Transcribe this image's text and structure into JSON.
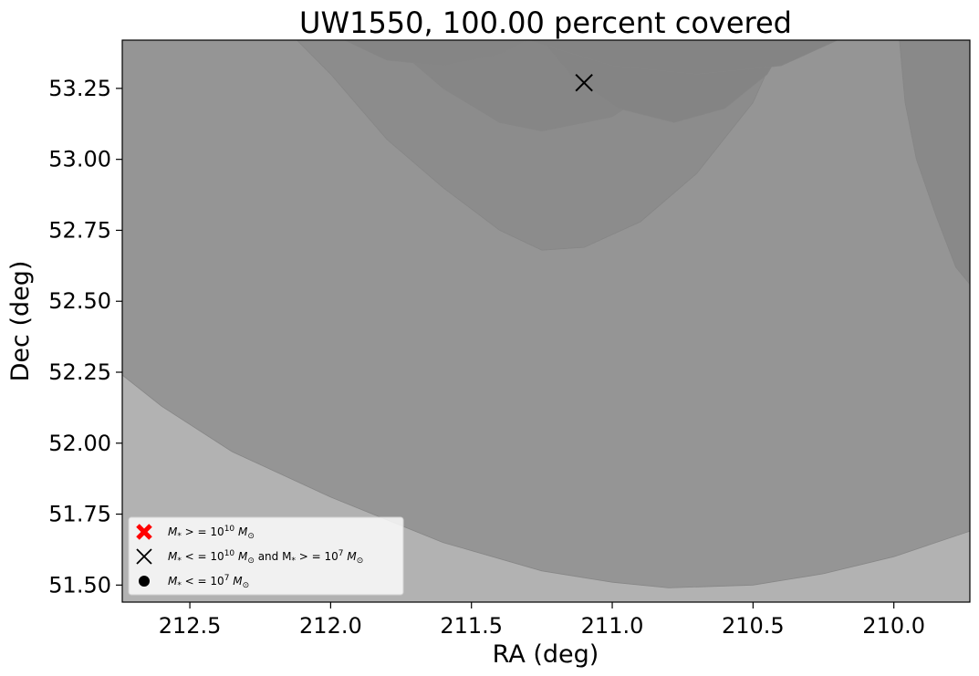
{
  "chart_data": {
    "type": "scatter",
    "title": "UW1550, 100.00 percent covered",
    "xlabel": "RA (deg)",
    "ylabel": "Dec (deg)",
    "xlim": [
      212.74,
      209.73
    ],
    "ylim": [
      51.44,
      53.42
    ],
    "x_inverted": true,
    "xticks": [
      {
        "value": 212.5,
        "label": "212.5"
      },
      {
        "value": 212.0,
        "label": "212.0"
      },
      {
        "value": 211.5,
        "label": "211.5"
      },
      {
        "value": 211.0,
        "label": "211.0"
      },
      {
        "value": 210.5,
        "label": "210.5"
      },
      {
        "value": 210.0,
        "label": "210.0"
      }
    ],
    "yticks": [
      {
        "value": 51.5,
        "label": "51.50"
      },
      {
        "value": 51.75,
        "label": "51.75"
      },
      {
        "value": 52.0,
        "label": "52.00"
      },
      {
        "value": 52.25,
        "label": "52.25"
      },
      {
        "value": 52.5,
        "label": "52.50"
      },
      {
        "value": 52.75,
        "label": "52.75"
      },
      {
        "value": 53.0,
        "label": "53.00"
      },
      {
        "value": 53.25,
        "label": "53.25"
      }
    ],
    "grid": false,
    "legend_position": "lower-left",
    "coverage_regions": [
      {
        "points": [
          [
            212.74,
            52.24
          ],
          [
            212.6,
            52.13
          ],
          [
            212.35,
            51.97
          ],
          [
            212.0,
            51.81
          ],
          [
            211.6,
            51.65
          ],
          [
            211.25,
            51.55
          ],
          [
            211.0,
            51.51
          ],
          [
            210.8,
            51.49
          ],
          [
            210.5,
            51.5
          ],
          [
            210.25,
            51.54
          ],
          [
            210.0,
            51.6
          ],
          [
            209.73,
            51.69
          ],
          [
            209.73,
            53.42
          ],
          [
            212.74,
            53.42
          ]
        ],
        "color": "#959595"
      },
      {
        "points": [
          [
            212.12,
            53.42
          ],
          [
            212.0,
            53.3
          ],
          [
            211.8,
            53.07
          ],
          [
            211.6,
            52.9
          ],
          [
            211.4,
            52.75
          ],
          [
            211.25,
            52.68
          ],
          [
            211.1,
            52.69
          ],
          [
            210.9,
            52.78
          ],
          [
            210.7,
            52.95
          ],
          [
            210.5,
            53.2
          ],
          [
            210.4,
            53.42
          ]
        ],
        "color": "#8c8c8c"
      },
      {
        "points": [
          [
            211.8,
            53.42
          ],
          [
            211.6,
            53.25
          ],
          [
            211.4,
            53.13
          ],
          [
            211.25,
            53.1
          ],
          [
            211.0,
            53.15
          ],
          [
            210.85,
            53.25
          ],
          [
            210.72,
            53.42
          ]
        ],
        "color": "#868686"
      },
      {
        "points": [
          [
            211.25,
            53.42
          ],
          [
            211.15,
            53.3
          ],
          [
            210.98,
            53.18
          ],
          [
            210.78,
            53.13
          ],
          [
            210.6,
            53.18
          ],
          [
            210.45,
            53.3
          ],
          [
            210.38,
            53.42
          ]
        ],
        "color": "#848484"
      },
      {
        "points": [
          [
            211.95,
            53.42
          ],
          [
            211.8,
            53.35
          ],
          [
            211.6,
            53.33
          ],
          [
            211.4,
            53.37
          ],
          [
            211.3,
            53.42
          ]
        ],
        "color": "#858585"
      },
      {
        "points": [
          [
            211.3,
            53.42
          ],
          [
            211.0,
            53.33
          ],
          [
            210.7,
            53.3
          ],
          [
            210.4,
            53.33
          ],
          [
            210.2,
            53.42
          ]
        ],
        "color": "#848484"
      },
      {
        "points": [
          [
            209.98,
            53.42
          ],
          [
            209.96,
            53.2
          ],
          [
            209.92,
            53.0
          ],
          [
            209.85,
            52.8
          ],
          [
            209.78,
            52.62
          ],
          [
            209.73,
            52.56
          ],
          [
            209.73,
            53.42
          ]
        ],
        "color": "#898989"
      }
    ],
    "series": [
      {
        "marker": "x",
        "color": "#000000",
        "points": [
          {
            "x": 211.1,
            "y": 53.27
          }
        ]
      }
    ],
    "legend": [
      {
        "marker": "big-x",
        "color": "#ff0000",
        "label_base": "M",
        "label_sub": "*",
        "label_mid": " > = 10",
        "label_sup": "10",
        "label_end": "M",
        "label_end_sub": "⊙",
        "label_tail": ""
      },
      {
        "marker": "x",
        "color": "#000000",
        "label_base": "M",
        "label_sub": "*",
        "label_mid": " < = 10",
        "label_sup": "10",
        "label_end": "M",
        "label_end_sub": "⊙",
        "label_tail": " and M",
        "label_tail_sub": "*",
        "label_tail_mid": " > = 10",
        "label_tail_sup": "7",
        "label_tail_end": "M",
        "label_tail_end_sub": "⊙"
      },
      {
        "marker": "dot",
        "color": "#000000",
        "label_base": "M",
        "label_sub": "*",
        "label_mid": " < = 10",
        "label_sup": "7",
        "label_end": "M",
        "label_end_sub": "⊙",
        "label_tail": ""
      }
    ],
    "background_color": "#b2b2b2"
  }
}
